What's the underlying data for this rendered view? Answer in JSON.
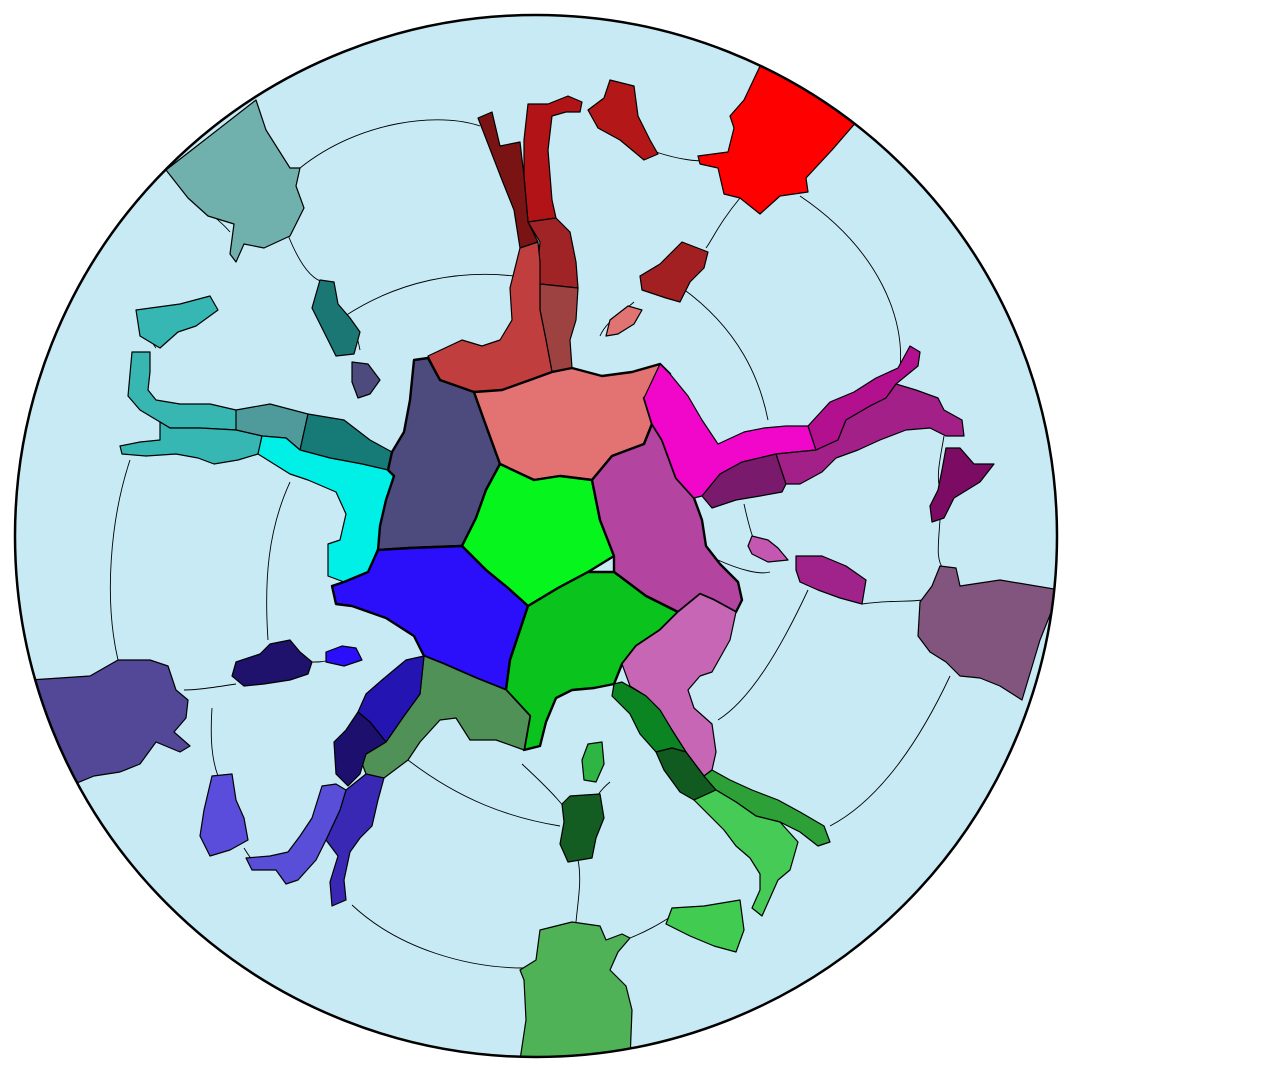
{
  "board": {
    "sea_color": "#c7eaf4",
    "rim_color": "#000000",
    "background": "#ffffff"
  },
  "regions": [
    {
      "name": "core-green",
      "color": "#05f51c"
    },
    {
      "name": "core-pink",
      "color": "#e27372"
    },
    {
      "name": "core-slate",
      "color": "#4d4a7d"
    },
    {
      "name": "core-blue",
      "color": "#2b0ffb"
    },
    {
      "name": "core-dark-green",
      "color": "#0ac41d"
    },
    {
      "name": "core-purple",
      "color": "#b345a0"
    },
    {
      "name": "red-north",
      "color": "#c03f3e"
    },
    {
      "name": "red-dark-strip",
      "color": "#7a1314"
    },
    {
      "name": "red-strip",
      "color": "#b21317"
    },
    {
      "name": "red-mid",
      "color": "#a02325"
    },
    {
      "name": "red-brown",
      "color": "#9e4141"
    },
    {
      "name": "red-island",
      "color": "#b31718"
    },
    {
      "name": "red-corner",
      "color": "#ff0000"
    },
    {
      "name": "red-small",
      "color": "#a21f22"
    },
    {
      "name": "salmon-islet",
      "color": "#e07472"
    },
    {
      "name": "magenta-arm",
      "color": "#f107c9"
    },
    {
      "name": "magenta-dark",
      "color": "#b2108e"
    },
    {
      "name": "plum-arm",
      "color": "#791a6c"
    },
    {
      "name": "plum-mid",
      "color": "#a32088"
    },
    {
      "name": "plum-island",
      "color": "#7c0c63"
    },
    {
      "name": "mauve-islet",
      "color": "#c457b1"
    },
    {
      "name": "violet-island",
      "color": "#a0228b"
    },
    {
      "name": "mauve-edge",
      "color": "#82557f"
    },
    {
      "name": "orchid-peninsula",
      "color": "#c666b4"
    },
    {
      "name": "green-arm-a",
      "color": "#0b8521"
    },
    {
      "name": "green-arm-b",
      "color": "#115b20"
    },
    {
      "name": "green-arm-c",
      "color": "#2ea038"
    },
    {
      "name": "green-arm-d",
      "color": "#46cc56"
    },
    {
      "name": "green-islet",
      "color": "#2fb543"
    },
    {
      "name": "green-island",
      "color": "#135c22"
    },
    {
      "name": "green-south-east",
      "color": "#41cb51"
    },
    {
      "name": "green-south-edge",
      "color": "#50b257"
    },
    {
      "name": "olive-green",
      "color": "#4f9156"
    },
    {
      "name": "indigo-a",
      "color": "#2414b1"
    },
    {
      "name": "indigo-b",
      "color": "#1c0f6d"
    },
    {
      "name": "indigo-c",
      "color": "#3828b4"
    },
    {
      "name": "indigo-d",
      "color": "#584ed8"
    },
    {
      "name": "indigo-island",
      "color": "#5a4ddb"
    },
    {
      "name": "indigo-edge",
      "color": "#534798"
    },
    {
      "name": "navy-island",
      "color": "#1e126d"
    },
    {
      "name": "blue-islet",
      "color": "#2b0ffb"
    },
    {
      "name": "cyan-core",
      "color": "#00f0e8"
    },
    {
      "name": "teal-a",
      "color": "#14a8a5"
    },
    {
      "name": "teal-b",
      "color": "#167a77"
    },
    {
      "name": "teal-c",
      "color": "#4f9b9b"
    },
    {
      "name": "teal-d",
      "color": "#37b7b4"
    },
    {
      "name": "teal-island",
      "color": "#38b6b2"
    },
    {
      "name": "teal-edge",
      "color": "#70b0ad"
    },
    {
      "name": "teal-islet",
      "color": "#1b7774"
    },
    {
      "name": "slate-islet",
      "color": "#4d4a7d"
    }
  ]
}
